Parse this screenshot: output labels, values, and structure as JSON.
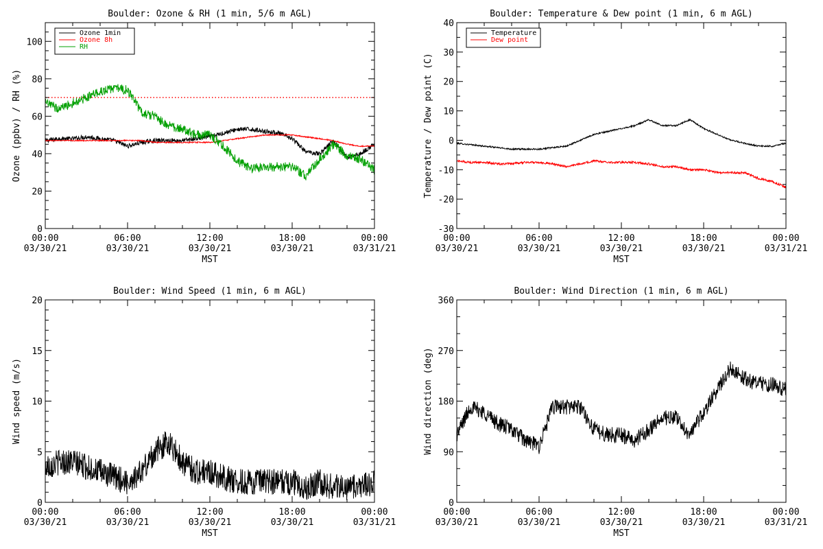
{
  "chart_data": [
    {
      "type": "line",
      "title": "Boulder: Ozone & RH (1 min, 5/6 m AGL)",
      "xlabel": "MST",
      "ylabel": "Ozone (ppbv) / RH (%)",
      "xticks": [
        {
          "hour": 0,
          "time": "00:00",
          "date": "03/30/21"
        },
        {
          "hour": 6,
          "time": "06:00",
          "date": "03/30/21"
        },
        {
          "hour": 12,
          "time": "12:00",
          "date": "03/30/21"
        },
        {
          "hour": 18,
          "time": "18:00",
          "date": "03/30/21"
        },
        {
          "hour": 24,
          "time": "00:00",
          "date": "03/31/21"
        }
      ],
      "xlim": [
        0,
        24
      ],
      "ylim": [
        0,
        110
      ],
      "yticks": [
        0,
        20,
        40,
        60,
        80,
        100
      ],
      "legend_position": "top-left",
      "reference_line": {
        "y": 70,
        "color": "#ff0000",
        "style": "dotted"
      },
      "series": [
        {
          "name": "Ozone 1min",
          "color": "#000000",
          "x": [
            0,
            1,
            2,
            3,
            4,
            5,
            6,
            7,
            8,
            9,
            10,
            11,
            12,
            13,
            14,
            15,
            16,
            17,
            18,
            19,
            20,
            21,
            22,
            23,
            24
          ],
          "y": [
            47,
            48,
            48,
            49,
            48,
            47,
            44,
            46,
            47,
            47,
            47,
            48,
            49,
            51,
            53,
            53,
            52,
            51,
            48,
            41,
            40,
            47,
            38,
            40,
            45
          ]
        },
        {
          "name": "Ozone 8h",
          "color": "#ff0000",
          "x": [
            0,
            1,
            2,
            3,
            4,
            5,
            6,
            7,
            8,
            9,
            10,
            11,
            12,
            13,
            14,
            15,
            16,
            17,
            18,
            19,
            20,
            21,
            22,
            23,
            24
          ],
          "y": [
            47,
            47,
            47,
            47,
            47,
            47,
            47,
            47,
            46,
            46,
            46,
            46,
            46,
            47,
            48,
            49,
            50,
            50,
            50,
            49,
            48,
            47,
            45,
            44,
            44
          ]
        },
        {
          "name": "RH",
          "color": "#00a000",
          "x": [
            0,
            1,
            2,
            3,
            4,
            5,
            6,
            7,
            8,
            9,
            10,
            11,
            12,
            13,
            14,
            15,
            16,
            17,
            18,
            19,
            20,
            21,
            22,
            23,
            24
          ],
          "y": [
            67,
            64,
            67,
            70,
            73,
            75,
            74,
            62,
            60,
            55,
            53,
            50,
            50,
            44,
            36,
            32,
            33,
            33,
            33,
            28,
            37,
            45,
            39,
            37,
            31
          ]
        }
      ]
    },
    {
      "type": "line",
      "title": "Boulder: Temperature & Dew point (1 min, 6 m AGL)",
      "xlabel": "MST",
      "ylabel": "Temperature / Dew point (C)",
      "xticks": [
        {
          "hour": 0,
          "time": "00:00",
          "date": "03/30/21"
        },
        {
          "hour": 6,
          "time": "06:00",
          "date": "03/30/21"
        },
        {
          "hour": 12,
          "time": "12:00",
          "date": "03/30/21"
        },
        {
          "hour": 18,
          "time": "18:00",
          "date": "03/30/21"
        },
        {
          "hour": 24,
          "time": "00:00",
          "date": "03/31/21"
        }
      ],
      "xlim": [
        0,
        24
      ],
      "ylim": [
        -30,
        40
      ],
      "yticks": [
        -30,
        -20,
        -10,
        0,
        10,
        20,
        30,
        40
      ],
      "legend_position": "top-left",
      "series": [
        {
          "name": "Temperature",
          "color": "#000000",
          "x": [
            0,
            1,
            2,
            3,
            4,
            5,
            6,
            7,
            8,
            9,
            10,
            11,
            12,
            13,
            14,
            15,
            16,
            17,
            18,
            19,
            20,
            21,
            22,
            23,
            24
          ],
          "y": [
            -1,
            -1.5,
            -2,
            -2.5,
            -3,
            -3,
            -3,
            -2.5,
            -2,
            0,
            2,
            3,
            4,
            5,
            7,
            5,
            5,
            7,
            4,
            2,
            0,
            -1,
            -2,
            -2,
            -1
          ]
        },
        {
          "name": "Dew point",
          "color": "#ff0000",
          "x": [
            0,
            1,
            2,
            3,
            4,
            5,
            6,
            7,
            8,
            9,
            10,
            11,
            12,
            13,
            14,
            15,
            16,
            17,
            18,
            19,
            20,
            21,
            22,
            23,
            24
          ],
          "y": [
            -7,
            -7.5,
            -7.5,
            -8,
            -8,
            -7.5,
            -7.5,
            -8,
            -9,
            -8,
            -7,
            -7.5,
            -7.5,
            -7.5,
            -8,
            -9,
            -9,
            -10,
            -10,
            -11,
            -11,
            -11,
            -13,
            -14,
            -16
          ]
        }
      ]
    },
    {
      "type": "line",
      "title": "Boulder: Wind Speed (1 min, 6 m AGL)",
      "xlabel": "MST",
      "ylabel": "Wind speed (m/s)",
      "xticks": [
        {
          "hour": 0,
          "time": "00:00",
          "date": "03/30/21"
        },
        {
          "hour": 6,
          "time": "06:00",
          "date": "03/30/21"
        },
        {
          "hour": 12,
          "time": "12:00",
          "date": "03/30/21"
        },
        {
          "hour": 18,
          "time": "18:00",
          "date": "03/30/21"
        },
        {
          "hour": 24,
          "time": "00:00",
          "date": "03/31/21"
        }
      ],
      "xlim": [
        0,
        24
      ],
      "ylim": [
        0,
        20
      ],
      "yticks": [
        0,
        5,
        10,
        15,
        20
      ],
      "series": [
        {
          "name": "",
          "color": "#000000",
          "x": [
            0,
            1,
            2,
            3,
            4,
            5,
            6,
            7,
            8,
            9,
            10,
            11,
            12,
            13,
            14,
            15,
            16,
            17,
            18,
            19,
            20,
            21,
            22,
            23,
            24
          ],
          "y": [
            3.5,
            4,
            4,
            3.5,
            3,
            2.5,
            2,
            3,
            5,
            6,
            4,
            3,
            3,
            2.5,
            2,
            2,
            2,
            2,
            2,
            1.5,
            2,
            1.5,
            1.5,
            1.5,
            2
          ]
        }
      ]
    },
    {
      "type": "line",
      "title": "Boulder: Wind Direction (1 min, 6 m AGL)",
      "xlabel": "MST",
      "ylabel": "Wind direction (deg)",
      "xticks": [
        {
          "hour": 0,
          "time": "00:00",
          "date": "03/30/21"
        },
        {
          "hour": 6,
          "time": "06:00",
          "date": "03/30/21"
        },
        {
          "hour": 12,
          "time": "12:00",
          "date": "03/30/21"
        },
        {
          "hour": 18,
          "time": "18:00",
          "date": "03/30/21"
        },
        {
          "hour": 24,
          "time": "00:00",
          "date": "03/31/21"
        }
      ],
      "xlim": [
        0,
        24
      ],
      "ylim": [
        0,
        360
      ],
      "yticks": [
        0,
        90,
        180,
        270,
        360
      ],
      "series": [
        {
          "name": "",
          "color": "#000000",
          "x": [
            0,
            1,
            2,
            3,
            4,
            5,
            6,
            7,
            8,
            9,
            10,
            11,
            12,
            13,
            14,
            15,
            16,
            17,
            18,
            19,
            20,
            21,
            22,
            23,
            24
          ],
          "y": [
            120,
            170,
            160,
            140,
            130,
            110,
            100,
            170,
            170,
            170,
            130,
            120,
            120,
            110,
            130,
            150,
            150,
            120,
            160,
            200,
            240,
            220,
            210,
            210,
            200
          ]
        }
      ]
    }
  ]
}
